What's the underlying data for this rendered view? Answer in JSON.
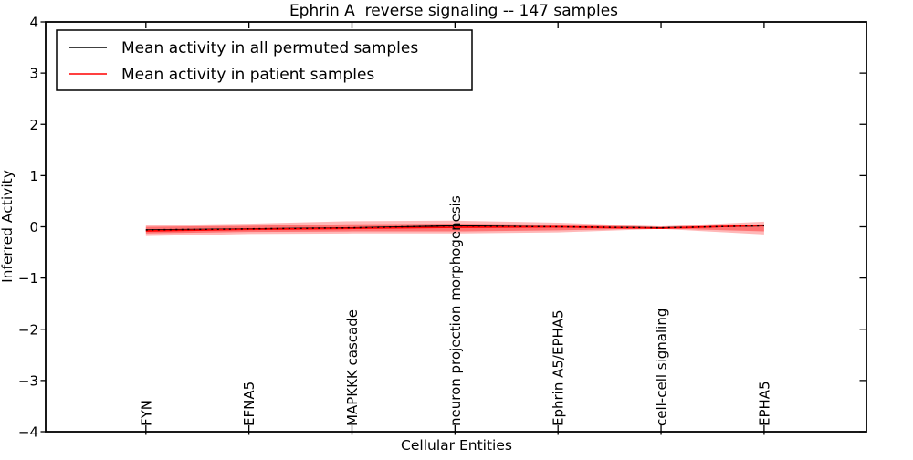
{
  "chart_data": {
    "type": "line",
    "title": "Ephrin A  reverse signaling -- 147 samples",
    "xlabel": "Cellular Entities",
    "ylabel": "Inferred Activity",
    "ylim": [
      -4,
      4
    ],
    "yticks": [
      4,
      3,
      2,
      1,
      0,
      -1,
      -2,
      -3,
      -4
    ],
    "ytick_labels": [
      "4",
      "3",
      "2",
      "1",
      "0",
      "−1",
      "−2",
      "−3",
      "−4"
    ],
    "grid": false,
    "categories": [
      "FYN",
      "EFNA5",
      "MAPKKK cascade",
      "neuron projection morphogenesis",
      "Ephrin A5/EPHA5",
      "cell-cell signaling",
      "EPHA5"
    ],
    "series": [
      {
        "name": "Mean activity in all permuted samples",
        "color": "#000000",
        "values": [
          -0.06,
          -0.04,
          -0.02,
          0.02,
          0.0,
          -0.02,
          0.02
        ]
      },
      {
        "name": "Mean activity in patient samples",
        "color": "#ff0000",
        "values": [
          -0.08,
          -0.05,
          -0.03,
          -0.01,
          0.0,
          -0.03,
          0.03
        ]
      }
    ],
    "band": {
      "color": "#ff0000",
      "outer_upper": [
        0.03,
        0.06,
        0.11,
        0.12,
        0.08,
        0.01,
        0.1
      ],
      "outer_lower": [
        -0.18,
        -0.14,
        -0.13,
        -0.13,
        -0.11,
        -0.04,
        -0.15
      ],
      "inner_upper": [
        0.0,
        0.02,
        0.05,
        0.06,
        0.04,
        0.0,
        0.05
      ],
      "inner_lower": [
        -0.13,
        -0.1,
        -0.09,
        -0.09,
        -0.07,
        -0.03,
        -0.09
      ]
    },
    "legend": {
      "position": "upper left",
      "entries": [
        {
          "label": "Mean activity in all permuted samples",
          "color": "#000000"
        },
        {
          "label": "Mean activity in patient samples",
          "color": "#ff0000"
        }
      ]
    }
  }
}
